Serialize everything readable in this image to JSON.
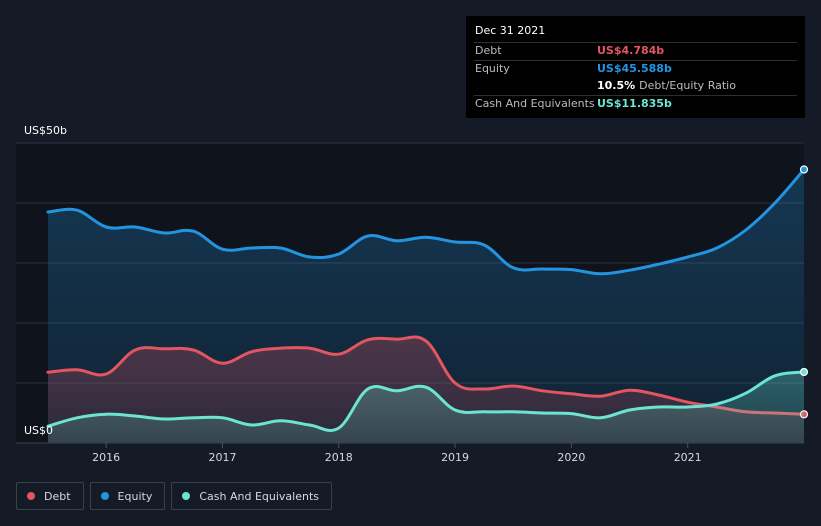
{
  "tooltip": {
    "date": "Dec 31 2021",
    "debt_label": "Debt",
    "debt_value": "US$4.784b",
    "equity_label": "Equity",
    "equity_value": "US$45.588b",
    "ratio_pct": "10.5%",
    "ratio_label": "Debt/Equity Ratio",
    "cash_label": "Cash And Equivalents",
    "cash_value": "US$11.835b"
  },
  "legend": {
    "debt": "Debt",
    "equity": "Equity",
    "cash": "Cash And Equivalents"
  },
  "colors": {
    "background": "#151b26",
    "plot_background": "#0f131c",
    "debt": "#e35561",
    "equity": "#2394df",
    "cash": "#6ce4d2"
  },
  "chart_data": {
    "type": "area",
    "ylabel_top": "US$50b",
    "ylabel_bottom": "US$0",
    "ylim": [
      0,
      50
    ],
    "xlim": [
      2015.5,
      2022.0
    ],
    "x_ticks": [
      "2016",
      "2017",
      "2018",
      "2019",
      "2020",
      "2021"
    ],
    "x_tick_values": [
      2016,
      2017,
      2018,
      2019,
      2020,
      2021
    ],
    "grid": true,
    "series": [
      {
        "name": "Equity",
        "points": [
          [
            2015.5,
            38.5
          ],
          [
            2015.75,
            38.8
          ],
          [
            2016.0,
            36.0
          ],
          [
            2016.25,
            36.0
          ],
          [
            2016.5,
            35.0
          ],
          [
            2016.75,
            35.3
          ],
          [
            2017.0,
            32.3
          ],
          [
            2017.25,
            32.5
          ],
          [
            2017.5,
            32.5
          ],
          [
            2017.75,
            31.0
          ],
          [
            2018.0,
            31.5
          ],
          [
            2018.25,
            34.5
          ],
          [
            2018.5,
            33.7
          ],
          [
            2018.75,
            34.3
          ],
          [
            2019.0,
            33.5
          ],
          [
            2019.25,
            33.0
          ],
          [
            2019.5,
            29.2
          ],
          [
            2019.75,
            29.0
          ],
          [
            2020.0,
            28.9
          ],
          [
            2020.25,
            28.2
          ],
          [
            2020.5,
            28.8
          ],
          [
            2020.75,
            29.8
          ],
          [
            2021.0,
            31.0
          ],
          [
            2021.25,
            32.5
          ],
          [
            2021.5,
            35.5
          ],
          [
            2021.75,
            40.0
          ],
          [
            2022.0,
            45.588
          ]
        ]
      },
      {
        "name": "Debt",
        "points": [
          [
            2015.5,
            11.8
          ],
          [
            2015.75,
            12.2
          ],
          [
            2016.0,
            11.5
          ],
          [
            2016.25,
            15.5
          ],
          [
            2016.5,
            15.7
          ],
          [
            2016.75,
            15.5
          ],
          [
            2017.0,
            13.3
          ],
          [
            2017.25,
            15.2
          ],
          [
            2017.5,
            15.8
          ],
          [
            2017.75,
            15.8
          ],
          [
            2018.0,
            14.8
          ],
          [
            2018.25,
            17.2
          ],
          [
            2018.5,
            17.3
          ],
          [
            2018.75,
            17.0
          ],
          [
            2019.0,
            10.0
          ],
          [
            2019.25,
            9.0
          ],
          [
            2019.5,
            9.5
          ],
          [
            2019.75,
            8.7
          ],
          [
            2020.0,
            8.2
          ],
          [
            2020.25,
            7.8
          ],
          [
            2020.5,
            8.8
          ],
          [
            2020.75,
            8.0
          ],
          [
            2021.0,
            6.8
          ],
          [
            2021.25,
            6.0
          ],
          [
            2021.5,
            5.2
          ],
          [
            2021.75,
            5.0
          ],
          [
            2022.0,
            4.784
          ]
        ]
      },
      {
        "name": "Cash And Equivalents",
        "points": [
          [
            2015.5,
            2.8
          ],
          [
            2015.75,
            4.2
          ],
          [
            2016.0,
            4.8
          ],
          [
            2016.25,
            4.5
          ],
          [
            2016.5,
            4.0
          ],
          [
            2016.75,
            4.2
          ],
          [
            2017.0,
            4.2
          ],
          [
            2017.25,
            3.0
          ],
          [
            2017.5,
            3.7
          ],
          [
            2017.75,
            3.0
          ],
          [
            2018.0,
            2.5
          ],
          [
            2018.25,
            9.0
          ],
          [
            2018.5,
            8.7
          ],
          [
            2018.75,
            9.3
          ],
          [
            2019.0,
            5.5
          ],
          [
            2019.25,
            5.2
          ],
          [
            2019.5,
            5.2
          ],
          [
            2019.75,
            5.0
          ],
          [
            2020.0,
            4.9
          ],
          [
            2020.25,
            4.2
          ],
          [
            2020.5,
            5.5
          ],
          [
            2020.75,
            6.0
          ],
          [
            2021.0,
            6.0
          ],
          [
            2021.25,
            6.5
          ],
          [
            2021.5,
            8.3
          ],
          [
            2021.75,
            11.2
          ],
          [
            2022.0,
            11.835
          ]
        ]
      }
    ]
  }
}
